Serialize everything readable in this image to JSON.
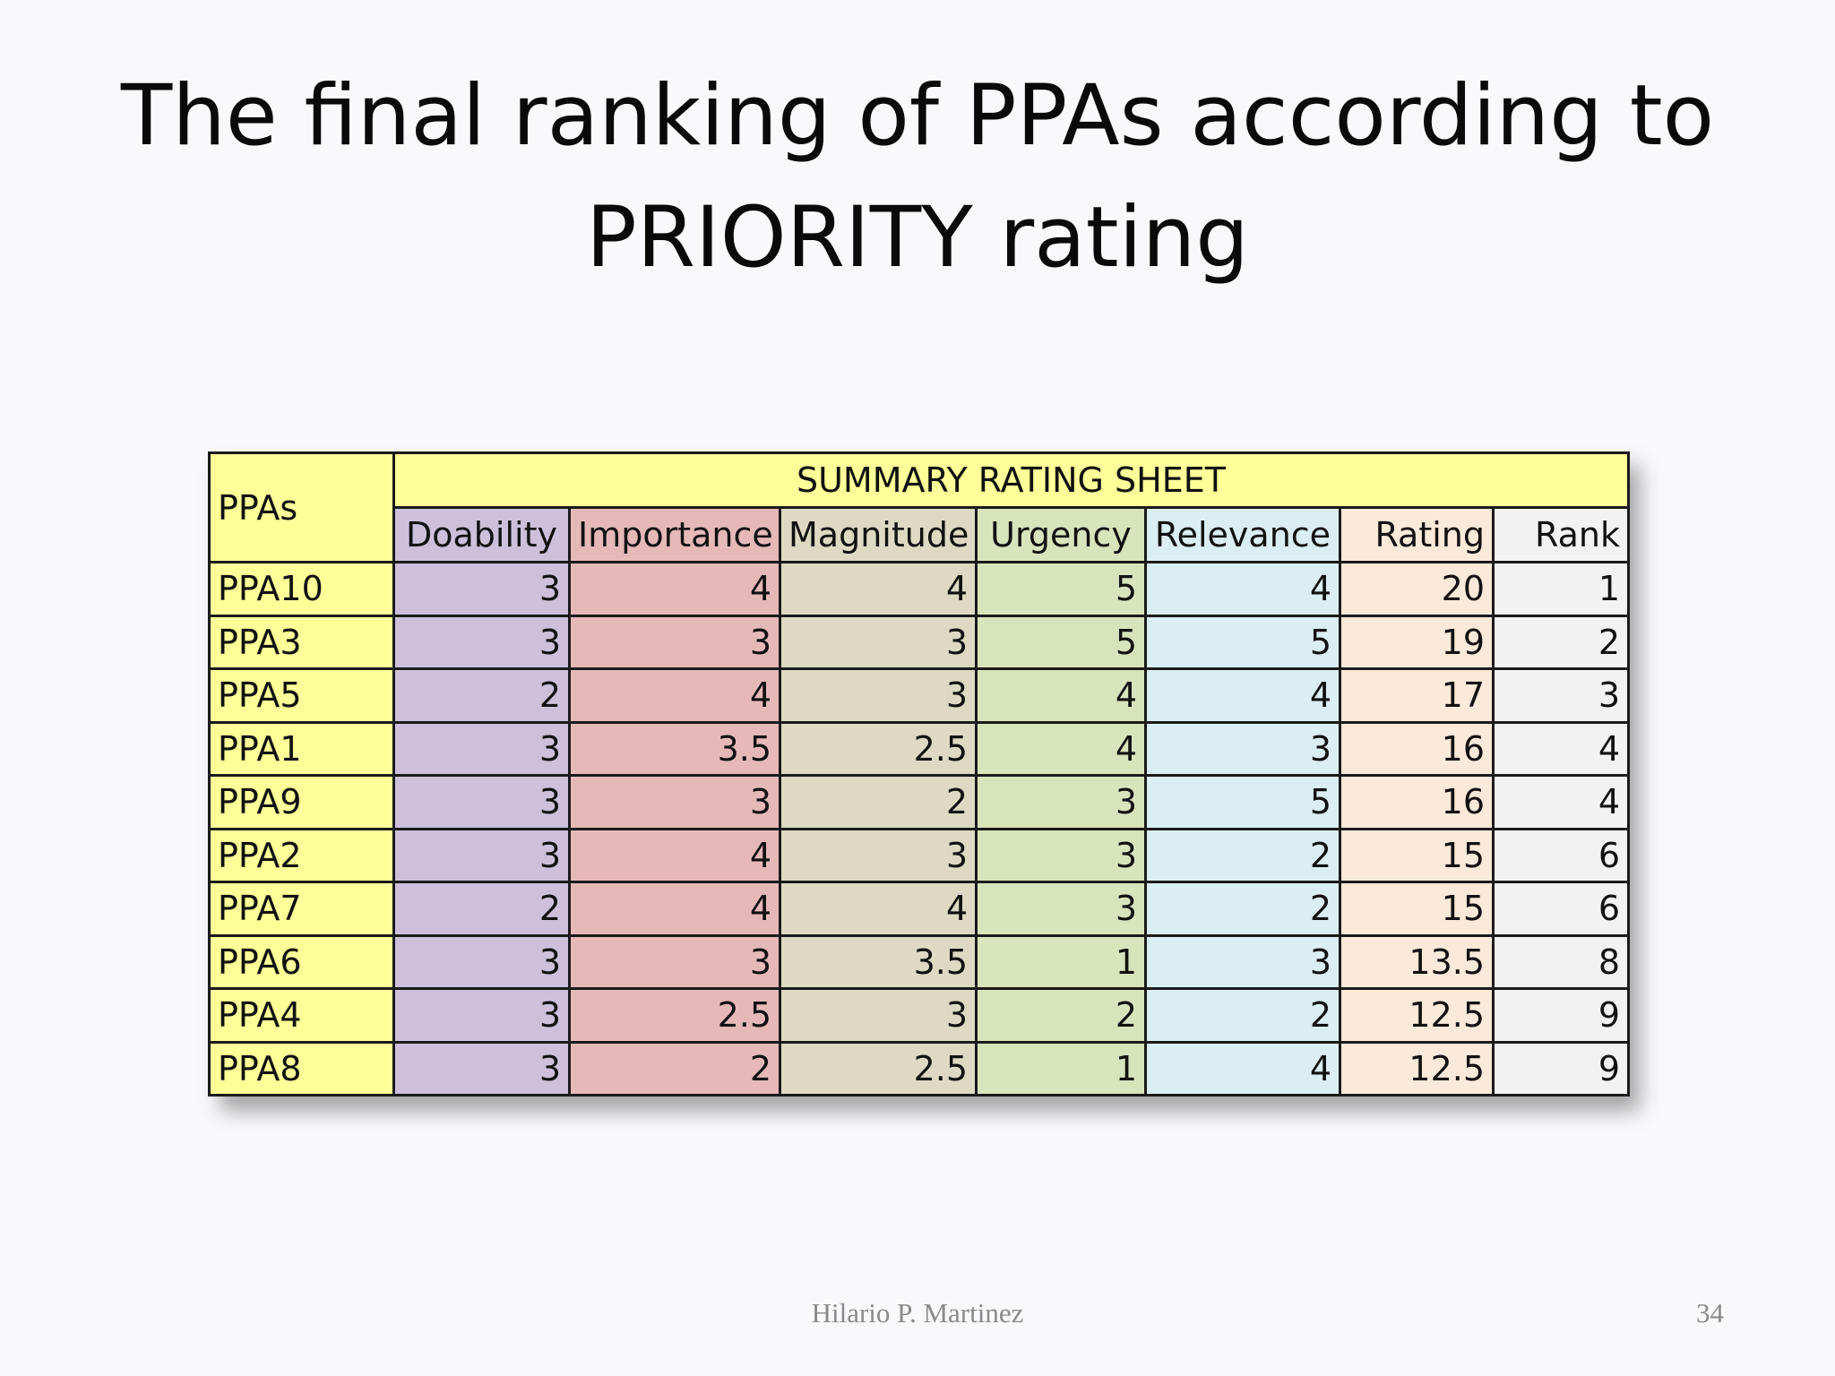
{
  "slide": {
    "title_line1": "The final ranking of PPAs according to",
    "title_line2": "PRIORITY rating",
    "author": "Hilario P. Martinez",
    "page_number": "34"
  },
  "table": {
    "row_header": "PPAs",
    "group_header": "SUMMARY RATING SHEET",
    "columns": [
      "Doability",
      "Importance",
      "Magnitude",
      "Urgency",
      "Relevance",
      "Rating",
      "Rank"
    ],
    "rows": [
      {
        "ppa": "PPA10",
        "values": [
          "3",
          "4",
          "4",
          "5",
          "4",
          "20",
          "1"
        ]
      },
      {
        "ppa": "PPA3",
        "values": [
          "3",
          "3",
          "3",
          "5",
          "5",
          "19",
          "2"
        ]
      },
      {
        "ppa": "PPA5",
        "values": [
          "2",
          "4",
          "3",
          "4",
          "4",
          "17",
          "3"
        ]
      },
      {
        "ppa": "PPA1",
        "values": [
          "3",
          "3.5",
          "2.5",
          "4",
          "3",
          "16",
          "4"
        ]
      },
      {
        "ppa": "PPA9",
        "values": [
          "3",
          "3",
          "2",
          "3",
          "5",
          "16",
          "4"
        ]
      },
      {
        "ppa": "PPA2",
        "values": [
          "3",
          "4",
          "3",
          "3",
          "2",
          "15",
          "6"
        ]
      },
      {
        "ppa": "PPA7",
        "values": [
          "2",
          "4",
          "4",
          "3",
          "2",
          "15",
          "6"
        ]
      },
      {
        "ppa": "PPA6",
        "values": [
          "3",
          "3",
          "3.5",
          "1",
          "3",
          "13.5",
          "8"
        ]
      },
      {
        "ppa": "PPA4",
        "values": [
          "3",
          "2.5",
          "3",
          "2",
          "2",
          "12.5",
          "9"
        ]
      },
      {
        "ppa": "PPA8",
        "values": [
          "3",
          "2",
          "2.5",
          "1",
          "4",
          "12.5",
          "9"
        ]
      }
    ]
  },
  "colors": {
    "ppas": "#ffff99",
    "doability": "#ccc0da",
    "importance": "#e6b9b8",
    "magnitude": "#ddd9c3",
    "urgency": "#d7e4bc",
    "relevance": "#dbeef4",
    "rating": "#fde9d9",
    "rank": "#f2f2f2"
  }
}
